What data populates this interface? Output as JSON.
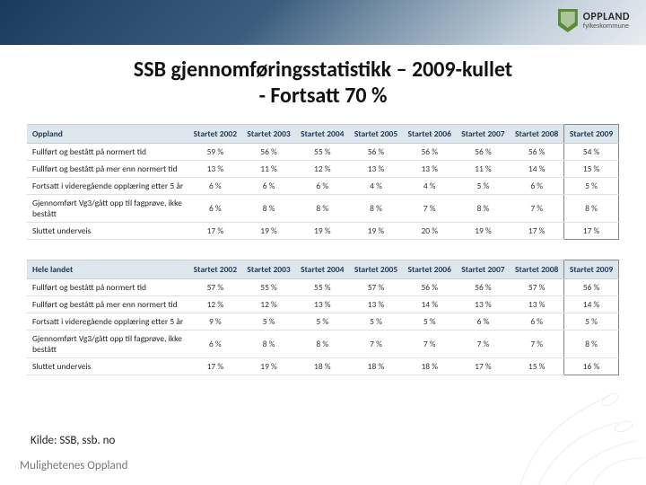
{
  "brand": {
    "name": "OPPLAND",
    "sub": "fylkeskommune"
  },
  "title": {
    "line1": "SSB gjennomføringsstatistikk – 2009-kullet",
    "line2": "- Fortsatt 70 %"
  },
  "table1": {
    "label": "Oppland",
    "years": [
      "Startet 2002",
      "Startet 2003",
      "Startet 2004",
      "Startet 2005",
      "Startet 2006",
      "Startet 2007",
      "Startet 2008",
      "Startet 2009"
    ],
    "rows": [
      {
        "label": "Fullført og bestått på normert tid",
        "v": [
          "59 %",
          "56 %",
          "55 %",
          "56 %",
          "56 %",
          "56 %",
          "56 %",
          "54 %"
        ]
      },
      {
        "label": "Fullført og bestått på mer enn normert tid",
        "v": [
          "13 %",
          "11 %",
          "12 %",
          "13 %",
          "13 %",
          "11 %",
          "14 %",
          "15 %"
        ]
      },
      {
        "label": "Fortsatt i videregående opplæring etter 5 år",
        "v": [
          "6 %",
          "6 %",
          "6 %",
          "4 %",
          "4 %",
          "5 %",
          "6 %",
          "5 %"
        ]
      },
      {
        "label": "Gjennomført Vg3/gått opp til fagprøve, ikke bestått",
        "v": [
          "6 %",
          "8 %",
          "8 %",
          "8 %",
          "7 %",
          "8 %",
          "7 %",
          "8 %"
        ]
      },
      {
        "label": "Sluttet underveis",
        "v": [
          "17 %",
          "19 %",
          "19 %",
          "19 %",
          "20 %",
          "19 %",
          "17 %",
          "17 %"
        ]
      }
    ]
  },
  "table2": {
    "label": "Hele landet",
    "years": [
      "Startet 2002",
      "Startet 2003",
      "Startet 2004",
      "Startet 2005",
      "Startet 2006",
      "Startet 2007",
      "Startet 2008",
      "Startet 2009"
    ],
    "rows": [
      {
        "label": "Fullført og bestått på normert tid",
        "v": [
          "57 %",
          "55 %",
          "55 %",
          "57 %",
          "56 %",
          "56 %",
          "57 %",
          "56 %"
        ]
      },
      {
        "label": "Fullført og bestått på mer enn normert tid",
        "v": [
          "12 %",
          "12 %",
          "13 %",
          "13 %",
          "14 %",
          "13 %",
          "13 %",
          "14 %"
        ]
      },
      {
        "label": "Fortsatt i videregående opplæring etter 5 år",
        "v": [
          "9 %",
          "5 %",
          "5 %",
          "5 %",
          "5 %",
          "6 %",
          "6 %",
          "5 %"
        ]
      },
      {
        "label": "Gjennomført Vg3/gått opp til fagprøve, ikke bestått",
        "v": [
          "6 %",
          "8 %",
          "8 %",
          "7 %",
          "7 %",
          "7 %",
          "7 %",
          "8 %"
        ]
      },
      {
        "label": "Sluttet underveis",
        "v": [
          "17 %",
          "19 %",
          "18 %",
          "18 %",
          "18 %",
          "17 %",
          "15 %",
          "16 %"
        ]
      }
    ]
  },
  "source": "Kilde: SSB, ssb. no",
  "footer": "Mulighetenes Oppland",
  "styling": {
    "header_gradient": [
      "#1a3a5c",
      "#2a4d6e",
      "#3a5d7e",
      "#8098ad",
      "#c0cdd9",
      "#e8edf2"
    ],
    "table_header_bg": "#dde5ed",
    "table_header_color": "#1f3a56",
    "row_border": "#e0e0e0",
    "highlight_border": "#888888",
    "title_fontsize_pt": 18,
    "table_fontsize_pt": 7,
    "logo_green": "#5a8a3a"
  }
}
